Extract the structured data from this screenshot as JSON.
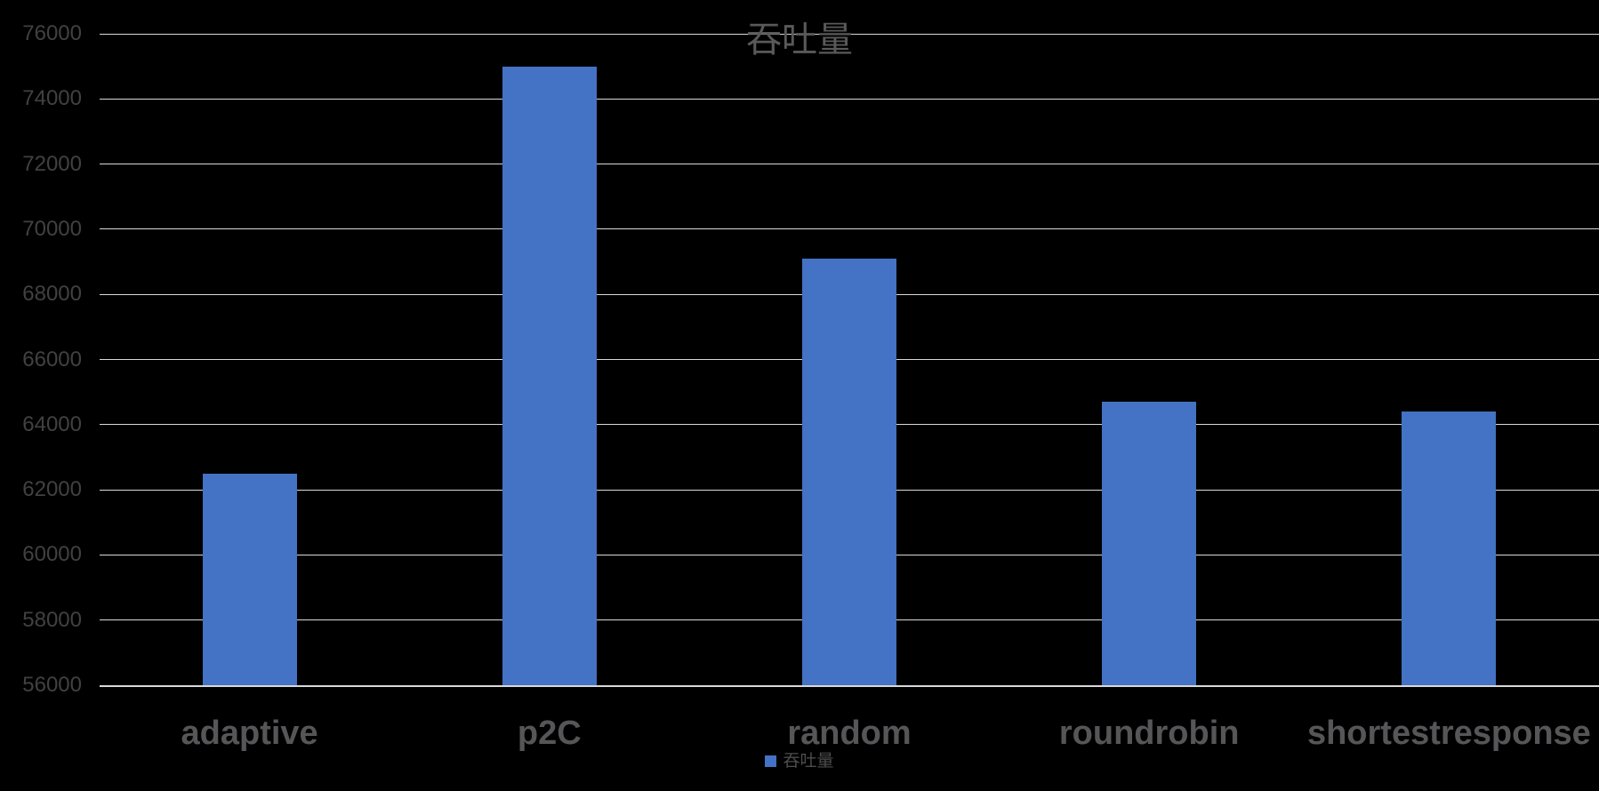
{
  "chart_data": {
    "type": "bar",
    "title": "吞吐量",
    "categories": [
      "adaptive",
      "p2C",
      "random",
      "roundrobin",
      "shortestresponse"
    ],
    "series": [
      {
        "name": "吞吐量",
        "values": [
          62500,
          75000,
          69100,
          64700,
          64400
        ]
      }
    ],
    "xlabel": "",
    "ylabel": "",
    "ylim": [
      56000,
      76000
    ],
    "ytick_step": 2000,
    "ytick_labels": [
      "76000",
      "74000",
      "72000",
      "70000",
      "68000",
      "66000",
      "64000",
      "62000",
      "60000",
      "58000",
      "56000"
    ],
    "grid": "horizontal",
    "legend_position": "bottom-center",
    "colors": {
      "bar": "#4472c4",
      "background": "#000000",
      "gridline": "#d9d9d9",
      "axis_tick_labels": "#414143",
      "category_labels": "#565658",
      "title": "#595959",
      "legend_text": "#4c4c4e"
    }
  },
  "legend": {
    "swatch_color": "#4472c4",
    "label": "吞吐量"
  }
}
